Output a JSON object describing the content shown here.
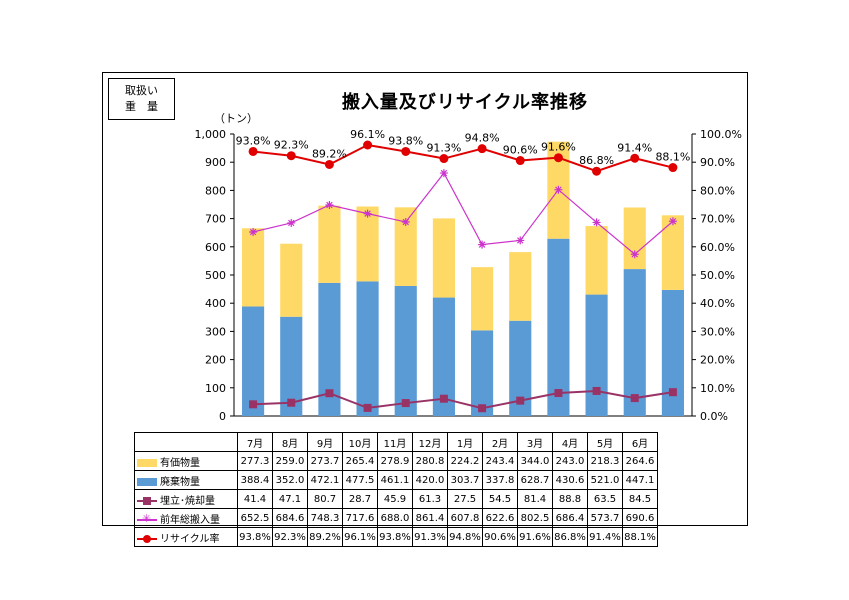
{
  "header": {
    "badge_line1": "取扱い",
    "badge_line2": "重　量",
    "title": "搬入量及びリサイクル率推移",
    "unit_label": "（トン）"
  },
  "chart_data": {
    "type": "bar",
    "stacked": true,
    "categories": [
      "7月",
      "8月",
      "9月",
      "10月",
      "11月",
      "12月",
      "1月",
      "2月",
      "3月",
      "4月",
      "5月",
      "6月"
    ],
    "ylim": [
      0,
      1000
    ],
    "yticks": [
      "0",
      "100",
      "200",
      "300",
      "400",
      "500",
      "600",
      "700",
      "800",
      "900",
      "1,000"
    ],
    "y2lim": [
      0,
      100
    ],
    "y2ticks": [
      "0.0%",
      "10.0%",
      "20.0%",
      "30.0%",
      "40.0%",
      "50.0%",
      "60.0%",
      "70.0%",
      "80.0%",
      "90.0%",
      "100.0%"
    ],
    "series": [
      {
        "name": "有価物量",
        "kind": "bar",
        "color": "#FFD966",
        "values": [
          277.3,
          259.0,
          273.7,
          265.4,
          278.9,
          280.8,
          224.2,
          243.4,
          344.0,
          243.0,
          218.3,
          264.6
        ]
      },
      {
        "name": "廃棄物量",
        "kind": "bar",
        "color": "#5B9BD5",
        "values": [
          388.4,
          352.0,
          472.1,
          477.5,
          461.1,
          420.0,
          303.7,
          337.8,
          628.7,
          430.6,
          521.0,
          447.1
        ]
      },
      {
        "name": "埋立・焼却量",
        "kind": "line",
        "marker": "square",
        "color": "#993366",
        "values": [
          41.4,
          47.1,
          80.7,
          28.7,
          45.9,
          61.3,
          27.5,
          54.5,
          81.4,
          88.8,
          63.5,
          84.5
        ]
      },
      {
        "name": "前年総搬入量",
        "kind": "line",
        "marker": "star",
        "color": "#CC33CC",
        "values": [
          652.5,
          684.6,
          748.3,
          717.6,
          688.0,
          861.4,
          607.8,
          622.6,
          802.5,
          686.4,
          573.7,
          690.6
        ]
      },
      {
        "name": "リサイクル率",
        "kind": "line",
        "marker": "circle",
        "color": "#E00000",
        "axis": "right",
        "values": [
          93.8,
          92.3,
          89.2,
          96.1,
          93.8,
          91.3,
          94.8,
          90.6,
          91.6,
          86.8,
          91.4,
          88.1
        ],
        "labels": [
          "93.8%",
          "92.3%",
          "89.2%",
          "96.1%",
          "93.8%",
          "91.3%",
          "94.8%",
          "90.6%",
          "91.6%",
          "86.8%",
          "91.4%",
          "88.1%"
        ]
      }
    ],
    "table": {
      "rows": [
        {
          "label": "有価物量",
          "legend": "rect",
          "color": "#FFD966",
          "cells": [
            "277.3",
            "259.0",
            "273.7",
            "265.4",
            "278.9",
            "280.8",
            "224.2",
            "243.4",
            "344.0",
            "243.0",
            "218.3",
            "264.6"
          ]
        },
        {
          "label": "廃棄物量",
          "legend": "rect",
          "color": "#5B9BD5",
          "cells": [
            "388.4",
            "352.0",
            "472.1",
            "477.5",
            "461.1",
            "420.0",
            "303.7",
            "337.8",
            "628.7",
            "430.6",
            "521.0",
            "447.1"
          ]
        },
        {
          "label": "埋立･焼却量",
          "legend": "square",
          "color": "#993366",
          "cells": [
            "41.4",
            "47.1",
            "80.7",
            "28.7",
            "45.9",
            "61.3",
            "27.5",
            "54.5",
            "81.4",
            "88.8",
            "63.5",
            "84.5"
          ]
        },
        {
          "label": "前年総搬入量",
          "legend": "star",
          "color": "#CC33CC",
          "cells": [
            "652.5",
            "684.6",
            "748.3",
            "717.6",
            "688.0",
            "861.4",
            "607.8",
            "622.6",
            "802.5",
            "686.4",
            "573.7",
            "690.6"
          ]
        },
        {
          "label": "リサイクル率",
          "legend": "circle",
          "color": "#E00000",
          "cells": [
            "93.8%",
            "92.3%",
            "89.2%",
            "96.1%",
            "93.8%",
            "91.3%",
            "94.8%",
            "90.6%",
            "91.6%",
            "86.8%",
            "91.4%",
            "88.1%"
          ]
        }
      ]
    }
  }
}
